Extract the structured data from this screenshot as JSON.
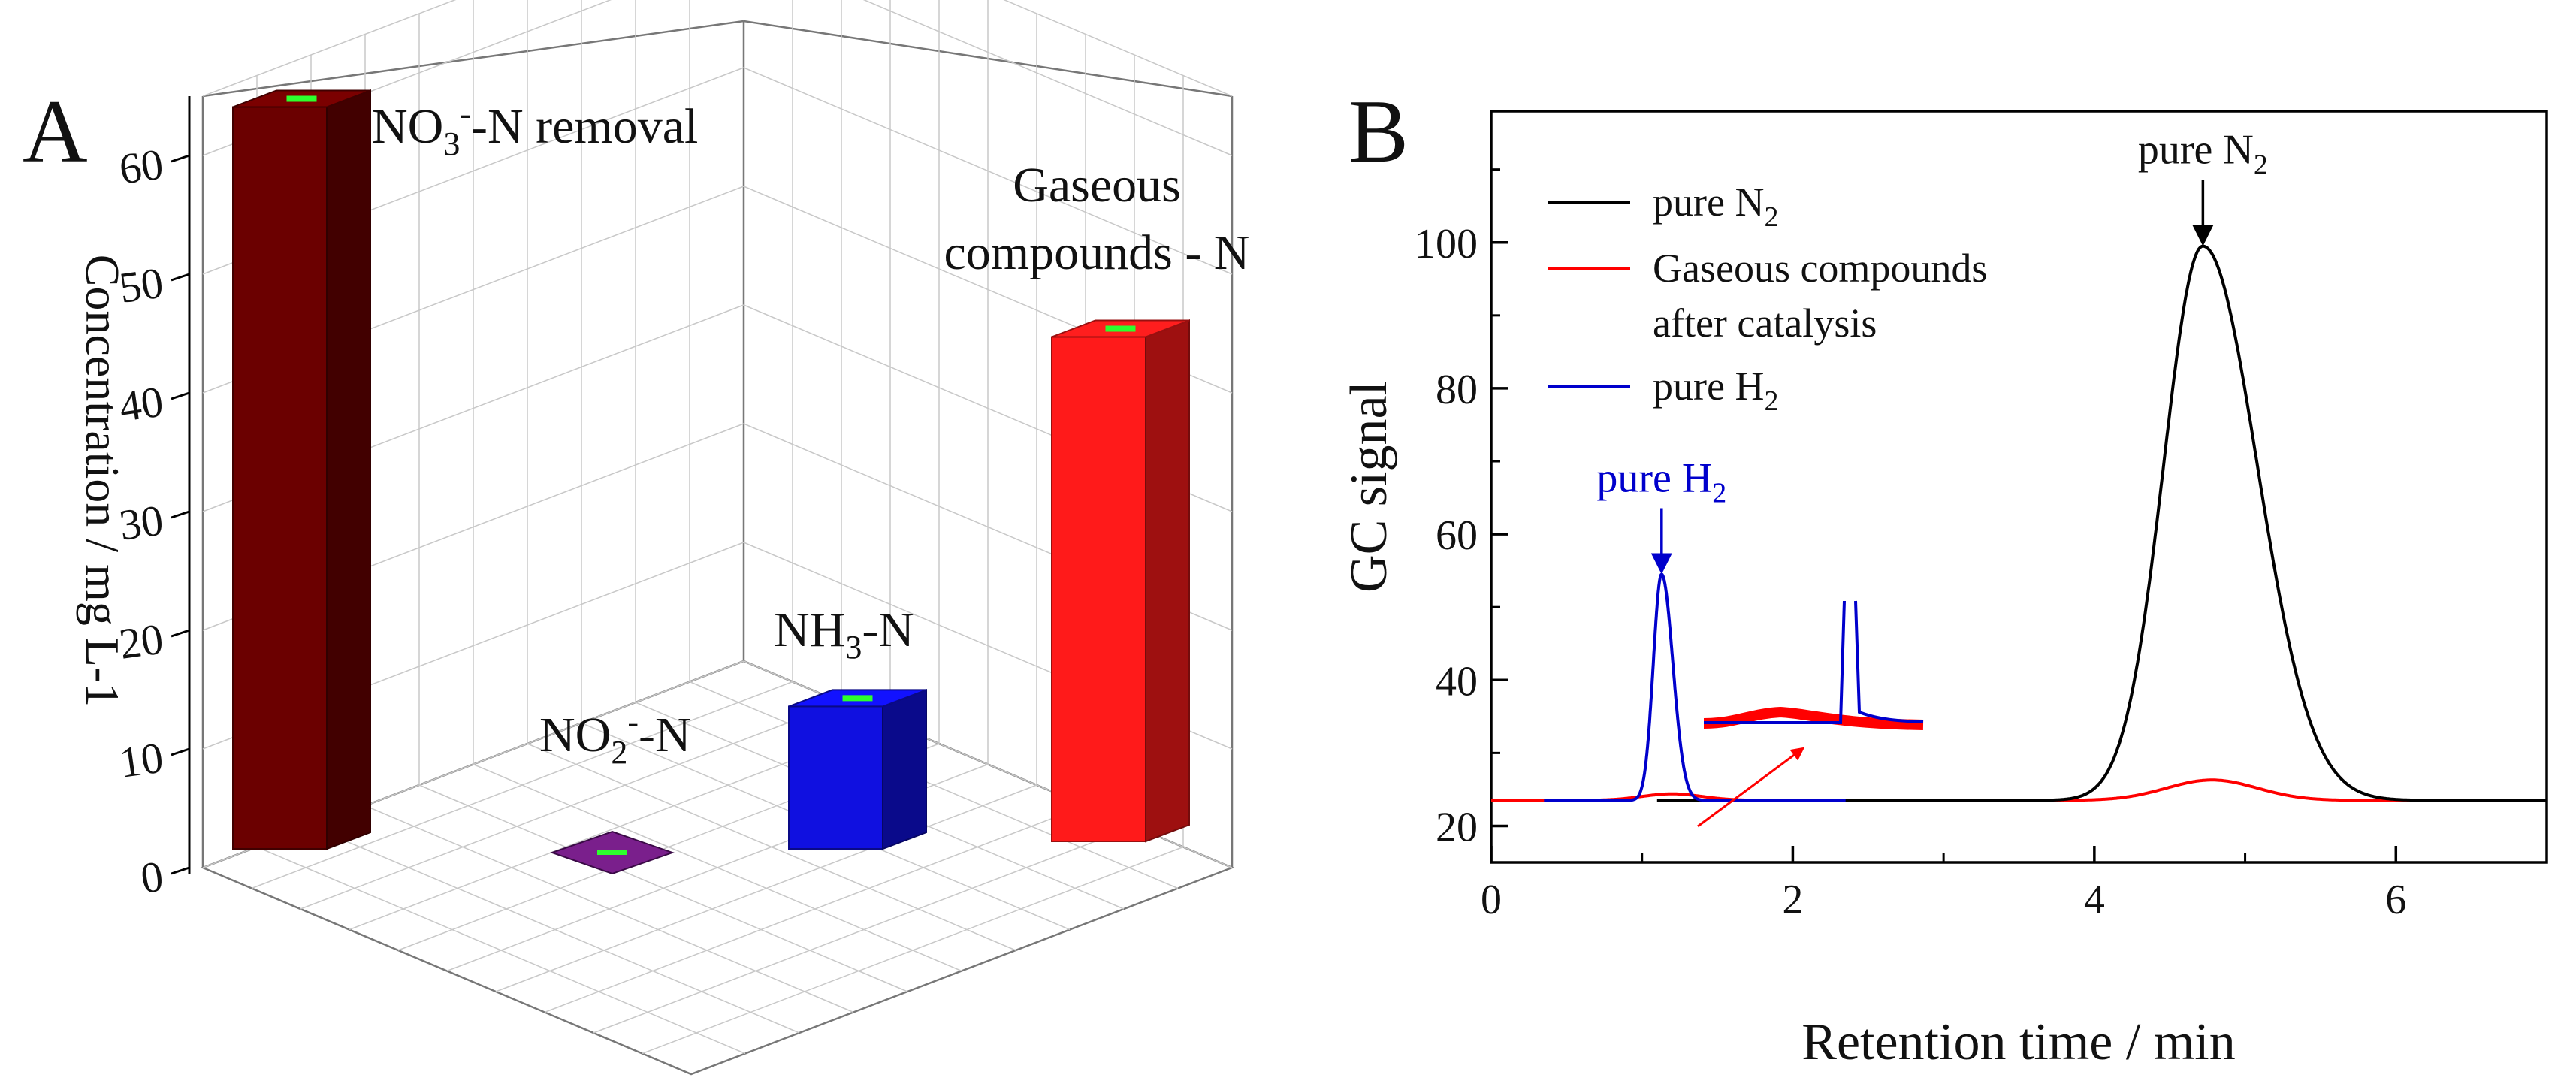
{
  "chart_data": [
    {
      "panel_label": "A",
      "type": "bar3d",
      "ylabel": "Concentration / mg L-1",
      "yticks": [
        0,
        10,
        20,
        30,
        40,
        50,
        60
      ],
      "ylim": [
        0,
        65
      ],
      "bars": [
        {
          "name": "NO3--N removal",
          "value": 62.5,
          "color": "#6b0000",
          "error": 0.5
        },
        {
          "name": "NO2--N",
          "value": 0.3,
          "color": "#7a1f8c",
          "error": 0.3
        },
        {
          "name": "NH3-N",
          "value": 12.0,
          "color": "#1010e0",
          "error": 0.5
        },
        {
          "name": "Gaseous compounds - N",
          "value": 42.5,
          "color": "#ff1a1a",
          "error": 0.5
        }
      ],
      "bar_labels": {
        "no3_main": "NO",
        "no3_sub": "3",
        "no3_sup": "-",
        "no3_rest": "-N removal",
        "no2_main": "NO",
        "no2_sub": "2",
        "no2_sup": "-",
        "no2_rest": "-N",
        "nh3_main": "NH",
        "nh3_sub": "3",
        "nh3_rest": "-N",
        "gas_line1": "Gaseous",
        "gas_line2": "compounds - N"
      }
    },
    {
      "panel_label": "B",
      "type": "line",
      "xlabel": "Retention time / min",
      "ylabel": "GC signal",
      "xlim": [
        0,
        7
      ],
      "ylim": [
        15,
        118
      ],
      "xticks": [
        0,
        2,
        4,
        6
      ],
      "yticks": [
        20,
        40,
        60,
        80,
        100
      ],
      "legend": {
        "position": "top-left",
        "entries": [
          {
            "lines": [
              "pure N",
              "2"
            ],
            "color": "#000000"
          },
          {
            "lines": [
              "Gaseous compounds",
              "after catalysis"
            ],
            "color": "#ff0000"
          },
          {
            "lines": [
              "pure H",
              "2"
            ],
            "color": "#0000cc"
          }
        ]
      },
      "series": [
        {
          "name": "pure N2",
          "color": "#000000",
          "baseline": 23.5,
          "x_range": [
            1.1,
            7.0
          ],
          "peak": {
            "center": 4.72,
            "height": 76,
            "sigma_left": 0.26,
            "sigma_right": 0.36
          }
        },
        {
          "name": "Gaseous compounds after catalysis",
          "color": "#ff0000",
          "baseline": 23.5,
          "x_range": [
            0,
            7.0
          ],
          "peaks": [
            {
              "center": 1.2,
              "height": 0.9,
              "sigma": 0.2
            },
            {
              "center": 4.78,
              "height": 2.8,
              "sigma": 0.3
            }
          ]
        },
        {
          "name": "pure H2",
          "color": "#0000cc",
          "baseline": 23.5,
          "x_range": [
            0.35,
            2.35
          ],
          "peak": {
            "center": 1.13,
            "height": 31,
            "sigma_left": 0.055,
            "sigma_right": 0.075
          }
        }
      ],
      "annotations": [
        {
          "main": "pure N",
          "sub": "2",
          "x": 4.72,
          "y": 99.5,
          "color": "#000000"
        },
        {
          "main": "pure H",
          "sub": "2",
          "x": 1.13,
          "y": 54.5,
          "color": "#0000cc"
        }
      ]
    }
  ]
}
